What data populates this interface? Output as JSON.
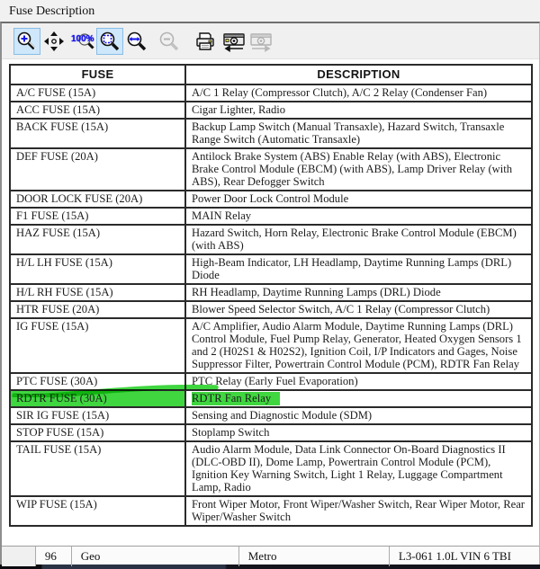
{
  "window": {
    "title": "Fuse Description"
  },
  "toolbar": {
    "zoom_100_label": "100%",
    "buttons": [
      {
        "name": "zoom-in",
        "selected": true,
        "disabled": false
      },
      {
        "name": "pan",
        "selected": false,
        "disabled": false
      },
      {
        "name": "zoom-100",
        "selected": false,
        "disabled": false
      },
      {
        "name": "zoom-fit-page",
        "selected": true,
        "disabled": false
      },
      {
        "name": "zoom-fit-width",
        "selected": false,
        "disabled": false
      },
      {
        "name": "zoom-out",
        "selected": false,
        "disabled": true
      },
      {
        "name": "print",
        "selected": false,
        "disabled": false
      },
      {
        "name": "previous-image",
        "selected": false,
        "disabled": false
      },
      {
        "name": "next-image",
        "selected": false,
        "disabled": true
      }
    ]
  },
  "table": {
    "headers": [
      "FUSE",
      "DESCRIPTION"
    ],
    "rows": [
      {
        "fuse": "A/C FUSE (15A)",
        "description": "A/C 1 Relay (Compressor Clutch), A/C 2 Relay (Condenser Fan)",
        "highlighted": false
      },
      {
        "fuse": "ACC FUSE (15A)",
        "description": "Cigar Lighter, Radio",
        "highlighted": false
      },
      {
        "fuse": "BACK FUSE (15A)",
        "description": "Backup Lamp Switch (Manual Transaxle), Hazard Switch, Transaxle Range Switch (Automatic Transaxle)",
        "highlighted": false
      },
      {
        "fuse": "DEF FUSE (20A)",
        "description": "Antilock Brake System (ABS) Enable Relay (with ABS), Electronic Brake Control Module (EBCM) (with ABS), Lamp Driver Relay (with ABS), Rear Defogger Switch",
        "highlighted": false
      },
      {
        "fuse": "DOOR LOCK FUSE (20A)",
        "description": "Power Door Lock Control Module",
        "highlighted": false
      },
      {
        "fuse": "F1 FUSE (15A)",
        "description": "MAIN Relay",
        "highlighted": false
      },
      {
        "fuse": "HAZ FUSE (15A)",
        "description": "Hazard Switch, Horn Relay, Electronic Brake Control Module (EBCM) (with ABS)",
        "highlighted": false
      },
      {
        "fuse": "H/L LH FUSE (15A)",
        "description": "High-Beam Indicator, LH Headlamp, Daytime Running Lamps (DRL) Diode",
        "highlighted": false
      },
      {
        "fuse": "H/L RH FUSE (15A)",
        "description": "RH Headlamp, Daytime Running Lamps (DRL) Diode",
        "highlighted": false
      },
      {
        "fuse": "HTR FUSE (20A)",
        "description": "Blower Speed Selector Switch, A/C 1 Relay (Compressor Clutch)",
        "highlighted": false
      },
      {
        "fuse": "IG FUSE (15A)",
        "description": "A/C Amplifier, Audio Alarm Module, Daytime Running Lamps (DRL) Control Module, Fuel Pump Relay, Generator, Heated Oxygen Sensors 1 and 2 (H02S1 & H02S2), Ignition Coil, I/P Indicators and Gages, Noise Suppressor Filter, Powertrain Control Module (PCM), RDTR Fan Relay",
        "highlighted": false
      },
      {
        "fuse": "PTC FUSE (30A)",
        "description": "PTC Relay (Early Fuel Evaporation)",
        "highlighted": false
      },
      {
        "fuse": "RDTR FUSE (30A)",
        "description": "RDTR Fan Relay",
        "highlighted": true
      },
      {
        "fuse": "SIR IG FUSE (15A)",
        "description": "Sensing and Diagnostic Module (SDM)",
        "highlighted": false
      },
      {
        "fuse": "STOP FUSE (15A)",
        "description": "Stoplamp Switch",
        "highlighted": false
      },
      {
        "fuse": "TAIL FUSE (15A)",
        "description": "Audio Alarm Module, Data Link Connector On-Board Diagnostics II (DLC-OBD II), Dome Lamp, Powertrain Control Module (PCM), Ignition Key Warning Switch, Light 1 Relay, Luggage Compartment Lamp, Radio",
        "highlighted": false
      },
      {
        "fuse": "WIP FUSE (15A)",
        "description": "Front Wiper Motor, Front Wiper/Washer Switch, Rear Wiper Motor, Rear Wiper/Washer Switch",
        "highlighted": false
      }
    ]
  },
  "status_bar": {
    "cells": [
      "",
      "96",
      "Geo",
      "Metro",
      "L3-061 1.0L VIN 6 TBI"
    ]
  },
  "colors": {
    "highlighter_green": "#3fd63f",
    "selected_button_bg": "#cfe7fa",
    "selected_button_border": "#88bde6",
    "icon_blue": "#1313e8"
  }
}
